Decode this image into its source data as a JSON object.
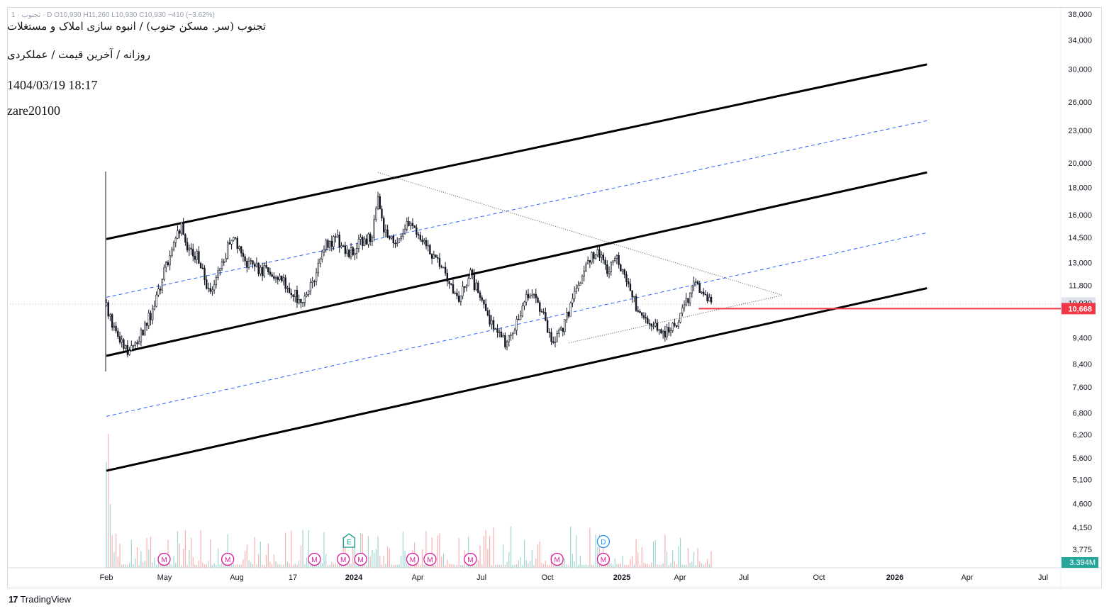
{
  "header": {
    "title": "ثجنوب (سر. مسکن جنوب) / انبوه سازی املاک و مستغلات",
    "subtitle": "روزانه / آخرین قیمت / عملکردی",
    "datetime": "1404/03/19 18:17",
    "author": "zare20100",
    "ohlc": "ثجنوب · 1 · D  O10,930  H11,260  L10,930  C10,930  −410 (−3.62%)"
  },
  "footer": {
    "logo_mark": "17",
    "logo_text": "TradingView"
  },
  "colors": {
    "up": "#26a69a",
    "down": "#ef5350",
    "candle": "#131722",
    "channel": "#000000",
    "midline": "#2962ff",
    "support": "#f23645",
    "event_m": "#d81b9b",
    "event_e": "#089981",
    "event_d": "#2196f3",
    "volume_badge": "#26a69a"
  },
  "chart_data": {
    "type": "candlestick",
    "scale": "log",
    "x_ticks": [
      "Feb",
      "May",
      "Aug",
      "17",
      "2024",
      "Apr",
      "Jul",
      "Oct",
      "2025",
      "Apr",
      "Jul",
      "Oct",
      "2026",
      "Apr",
      "Jul"
    ],
    "y_ticks": [
      38000,
      34000,
      30000,
      26000,
      23000,
      20000,
      18000,
      16000,
      14500,
      13000,
      11800,
      10930,
      10668,
      9400,
      8400,
      7600,
      6800,
      6200,
      5600,
      5100,
      4600,
      4150,
      3775
    ],
    "y_tick_labels": [
      "38,000",
      "34,000",
      "30,000",
      "26,000",
      "23,000",
      "20,000",
      "18,000",
      "16,000",
      "14,500",
      "13,000",
      "11,800",
      "10,930",
      "10,668",
      "9,400",
      "8,400",
      "7,600",
      "6,800",
      "6,200",
      "5,600",
      "5,100",
      "4,600",
      "4,150",
      "3,775"
    ],
    "last_price": 10930,
    "last_price_label": "10,930",
    "support_price": 10668,
    "support_label": "10,668",
    "volume_label": "3.394M",
    "price_path": [
      [
        0,
        10800
      ],
      [
        2,
        9300
      ],
      [
        4,
        8900
      ],
      [
        6,
        9500
      ],
      [
        8,
        10600
      ],
      [
        10,
        12500
      ],
      [
        12,
        14200
      ],
      [
        13,
        15600
      ],
      [
        14,
        14000
      ],
      [
        16,
        13200
      ],
      [
        18,
        11300
      ],
      [
        20,
        13000
      ],
      [
        22,
        14800
      ],
      [
        24,
        13000
      ],
      [
        26,
        12700
      ],
      [
        28,
        12500
      ],
      [
        30,
        12200
      ],
      [
        32,
        11600
      ],
      [
        34,
        10800
      ],
      [
        36,
        12200
      ],
      [
        38,
        14200
      ],
      [
        40,
        14300
      ],
      [
        42,
        13500
      ],
      [
        44,
        14200
      ],
      [
        46,
        14500
      ],
      [
        47,
        17600
      ],
      [
        48,
        15200
      ],
      [
        50,
        14200
      ],
      [
        52,
        15200
      ],
      [
        53,
        15400
      ],
      [
        55,
        14000
      ],
      [
        57,
        13200
      ],
      [
        59,
        12200
      ],
      [
        61,
        11200
      ],
      [
        63,
        12300
      ],
      [
        65,
        11000
      ],
      [
        67,
        9800
      ],
      [
        69,
        9200
      ],
      [
        71,
        10000
      ],
      [
        73,
        11400
      ],
      [
        75,
        10800
      ],
      [
        77,
        9300
      ],
      [
        79,
        9800
      ],
      [
        81,
        11400
      ],
      [
        83,
        12800
      ],
      [
        85,
        13800
      ],
      [
        87,
        12400
      ],
      [
        88,
        13400
      ],
      [
        90,
        11900
      ],
      [
        92,
        10600
      ],
      [
        94,
        10100
      ],
      [
        96,
        9600
      ],
      [
        98,
        9800
      ],
      [
        100,
        10700
      ],
      [
        102,
        11900
      ],
      [
        103,
        11500
      ],
      [
        104,
        11000
      ],
      [
        105,
        10930
      ]
    ],
    "channels": [
      {
        "name": "upper",
        "x1": 0,
        "y1": 14400,
        "x2": 142,
        "y2": 30600
      },
      {
        "name": "middle",
        "x1": 0,
        "y1": 8700,
        "x2": 142,
        "y2": 19200
      },
      {
        "name": "lower",
        "x1": 0,
        "y1": 5300,
        "x2": 142,
        "y2": 11650
      }
    ],
    "midlines": [
      {
        "name": "upper-mid",
        "x1": 0,
        "y1": 11200,
        "x2": 142,
        "y2": 24000
      },
      {
        "name": "lower-mid",
        "x1": 0,
        "y1": 6700,
        "x2": 142,
        "y2": 14800
      }
    ],
    "triangle": [
      {
        "x1": 47,
        "y1": 19200,
        "x2": 117,
        "y2": 11300
      },
      {
        "x1": 80,
        "y1": 9200,
        "x2": 117,
        "y2": 11300
      }
    ],
    "events": [
      {
        "x": 10,
        "label": "M",
        "kind": "m"
      },
      {
        "x": 21,
        "label": "M",
        "kind": "m"
      },
      {
        "x": 36,
        "label": "M",
        "kind": "m"
      },
      {
        "x": 41,
        "label": "M",
        "kind": "m"
      },
      {
        "x": 42,
        "label": "E",
        "kind": "e"
      },
      {
        "x": 44,
        "label": "M",
        "kind": "m"
      },
      {
        "x": 53,
        "label": "M",
        "kind": "m"
      },
      {
        "x": 56,
        "label": "M",
        "kind": "m"
      },
      {
        "x": 63,
        "label": "M",
        "kind": "m"
      },
      {
        "x": 78,
        "label": "M",
        "kind": "m"
      },
      {
        "x": 86,
        "label": "D",
        "kind": "d"
      },
      {
        "x": 86,
        "label": "M",
        "kind": "m"
      }
    ]
  }
}
